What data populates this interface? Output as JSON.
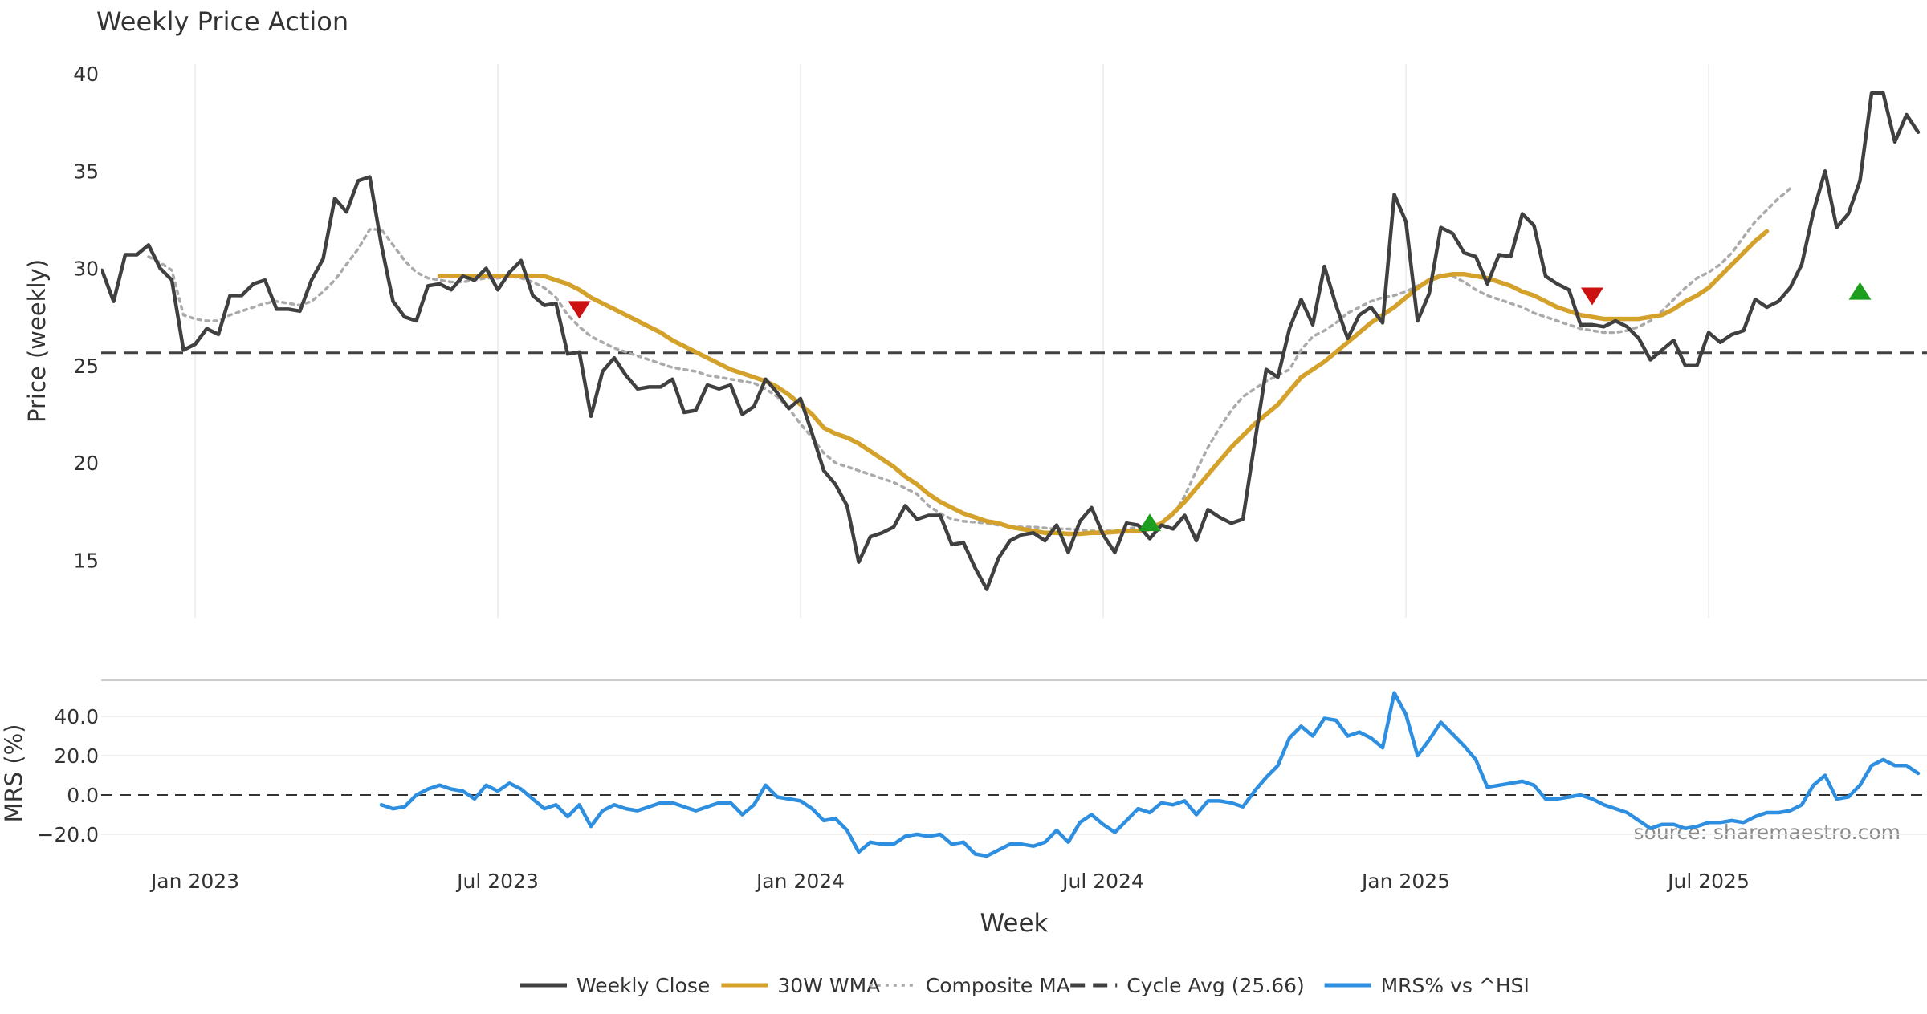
{
  "chart_data": [
    {
      "type": "line",
      "panel": "price",
      "title": "Weekly Price Action",
      "xlabel": "",
      "ylabel": "Price (weekly)",
      "ylim": [
        12,
        40.5
      ],
      "yticks": [
        15,
        20,
        25,
        30,
        35,
        40
      ],
      "grid": "vertical",
      "reference_line": {
        "name": "Cycle Avg (25.66)",
        "value": 25.66
      },
      "series": [
        {
          "name": "Weekly Close",
          "color": "#404040",
          "start_week": 0,
          "values": [
            29.9,
            28.3,
            30.7,
            30.7,
            31.2,
            30.0,
            29.4,
            25.8,
            26.1,
            26.9,
            26.6,
            28.6,
            28.6,
            29.2,
            29.4,
            27.9,
            27.9,
            27.8,
            29.4,
            30.5,
            33.6,
            32.9,
            34.5,
            34.7,
            31.2,
            28.3,
            27.5,
            27.3,
            29.1,
            29.2,
            28.9,
            29.6,
            29.4,
            30.0,
            28.9,
            29.8,
            30.4,
            28.6,
            28.1,
            28.2,
            25.6,
            25.7,
            22.4,
            24.7,
            25.4,
            24.5,
            23.8,
            23.9,
            23.9,
            24.3,
            22.6,
            22.7,
            24.0,
            23.8,
            24.0,
            22.5,
            22.9,
            24.3,
            23.6,
            22.8,
            23.3,
            21.5,
            19.6,
            18.9,
            17.8,
            14.9,
            16.2,
            16.4,
            16.7,
            17.8,
            17.1,
            17.3,
            17.3,
            15.8,
            15.9,
            14.6,
            13.5,
            15.1,
            16.0,
            16.3,
            16.4,
            16.0,
            16.8,
            15.4,
            17.0,
            17.7,
            16.3,
            15.4,
            16.9,
            16.8,
            16.1,
            16.8,
            16.6,
            17.3,
            16.0,
            17.6,
            17.2,
            16.9,
            17.1,
            21.0,
            24.8,
            24.4,
            26.9,
            28.4,
            27.1,
            30.1,
            28.1,
            26.4,
            27.6,
            28.0,
            27.2,
            33.8,
            32.4,
            27.3,
            28.7,
            32.1,
            31.8,
            30.8,
            30.6,
            29.2,
            30.7,
            30.6,
            32.8,
            32.2,
            29.6,
            29.2,
            28.9,
            27.1,
            27.1,
            27.0,
            27.3,
            27.0,
            26.4,
            25.3,
            25.8,
            26.3,
            25.0,
            25.0,
            26.7,
            26.2,
            26.6,
            26.8,
            28.4,
            28.0,
            28.3,
            29.0,
            30.2,
            32.9,
            35.0,
            32.1,
            32.8,
            34.5,
            39.0,
            39.0,
            36.5,
            37.9,
            37.0
          ]
        },
        {
          "name": "30W WMA",
          "color": "#D4A12A",
          "start_week": 29,
          "values": [
            29.6,
            29.6,
            29.6,
            29.6,
            29.6,
            29.6,
            29.6,
            29.6,
            29.6,
            29.6,
            29.4,
            29.2,
            28.9,
            28.5,
            28.2,
            27.9,
            27.6,
            27.3,
            27.0,
            26.7,
            26.3,
            26.0,
            25.7,
            25.4,
            25.1,
            24.8,
            24.6,
            24.4,
            24.2,
            23.9,
            23.5,
            23.0,
            22.5,
            21.8,
            21.5,
            21.3,
            21.0,
            20.6,
            20.2,
            19.8,
            19.3,
            18.9,
            18.4,
            18.0,
            17.7,
            17.4,
            17.2,
            17.0,
            16.9,
            16.7,
            16.6,
            16.5,
            16.4,
            16.4,
            16.35,
            16.35,
            16.4,
            16.4,
            16.45,
            16.5,
            16.5,
            16.6,
            16.9,
            17.4,
            18.0,
            18.7,
            19.4,
            20.1,
            20.8,
            21.4,
            22.0,
            22.5,
            23.0,
            23.7,
            24.4,
            24.8,
            25.2,
            25.7,
            26.2,
            26.7,
            27.2,
            27.6,
            28.0,
            28.5,
            29.0,
            29.4,
            29.6,
            29.7,
            29.7,
            29.6,
            29.5,
            29.3,
            29.1,
            28.8,
            28.6,
            28.3,
            28.0,
            27.8,
            27.6,
            27.5,
            27.4,
            27.4,
            27.4,
            27.4,
            27.5,
            27.6,
            27.9,
            28.3,
            28.6,
            29.0,
            29.6,
            30.2,
            30.8,
            31.4,
            31.9
          ]
        },
        {
          "name": "Composite MA",
          "color": "#AAAAAA",
          "start_week": 4,
          "values": [
            30.6,
            30.3,
            29.9,
            27.6,
            27.4,
            27.3,
            27.3,
            27.6,
            27.8,
            28.0,
            28.2,
            28.3,
            28.2,
            28.1,
            28.3,
            28.8,
            29.4,
            30.2,
            31.0,
            32.0,
            32.0,
            31.2,
            30.4,
            29.8,
            29.5,
            29.4,
            29.3,
            29.3,
            29.4,
            29.5,
            29.5,
            29.6,
            29.5,
            29.3,
            29.0,
            28.5,
            27.6,
            27.0,
            26.5,
            26.2,
            25.9,
            25.7,
            25.5,
            25.3,
            25.1,
            24.9,
            24.8,
            24.7,
            24.5,
            24.4,
            24.3,
            24.2,
            24.1,
            23.8,
            23.4,
            22.8,
            22.0,
            21.3,
            20.5,
            20.0,
            19.8,
            19.6,
            19.4,
            19.2,
            19.0,
            18.7,
            18.4,
            17.8,
            17.4,
            17.1,
            17.0,
            16.95,
            16.9,
            16.8,
            16.75,
            16.7,
            16.7,
            16.65,
            16.6,
            16.6,
            16.55,
            16.5,
            16.5,
            16.5,
            16.6,
            16.7,
            16.8,
            16.9,
            17.3,
            18.3,
            19.6,
            20.8,
            21.8,
            22.7,
            23.4,
            23.8,
            24.2,
            24.5,
            24.8,
            25.8,
            26.5,
            26.8,
            27.2,
            27.7,
            28.0,
            28.3,
            28.5,
            28.6,
            28.8,
            29.1,
            29.4,
            29.7,
            29.6,
            29.3,
            28.9,
            28.6,
            28.4,
            28.2,
            28.0,
            27.7,
            27.5,
            27.3,
            27.1,
            26.9,
            26.8,
            26.7,
            26.7,
            26.8,
            27.0,
            27.3,
            27.8,
            28.4,
            29.0,
            29.5,
            29.8,
            30.2,
            30.8,
            31.6,
            32.4,
            33.0,
            33.6,
            34.1
          ]
        }
      ],
      "markers": [
        {
          "type": "sell",
          "week": 41,
          "value": 27.9,
          "color": "#CC1111"
        },
        {
          "type": "buy",
          "week": 90,
          "value": 16.9,
          "color": "#1E9E1E"
        },
        {
          "type": "sell",
          "week": 128,
          "value": 28.6,
          "color": "#CC1111"
        },
        {
          "type": "buy",
          "week": 151,
          "value": 28.8,
          "color": "#1E9E1E"
        }
      ]
    },
    {
      "type": "line",
      "panel": "mrs",
      "xlabel": "Week",
      "ylabel": "MRS (%)",
      "ylim": [
        -30,
        55
      ],
      "yticks": [
        40,
        20,
        0,
        -20
      ],
      "ytick_labels": [
        "40.0",
        "20.0",
        "0.0",
        "−20.0"
      ],
      "grid": "horizontal",
      "reference_line": {
        "value": 0
      },
      "series": [
        {
          "name": "MRS% vs ^HSI",
          "color": "#2E8FE0",
          "start_week": 24,
          "values": [
            -5,
            -7,
            -6,
            0,
            3,
            5,
            3,
            2,
            -2,
            5,
            2,
            6,
            3,
            -2,
            -7,
            -5,
            -11,
            -5,
            -16,
            -8,
            -5,
            -7,
            -8,
            -6,
            -4,
            -4,
            -6,
            -8,
            -6,
            -4,
            -4,
            -10,
            -5,
            5,
            -1,
            -2,
            -3,
            -7,
            -13,
            -12,
            -18,
            -29,
            -24,
            -25,
            -25,
            -21,
            -20,
            -21,
            -20,
            -25,
            -24,
            -30,
            -31,
            -28,
            -25,
            -25,
            -26,
            -24,
            -18,
            -24,
            -14,
            -10,
            -15,
            -19,
            -13,
            -7,
            -9,
            -4,
            -5,
            -3,
            -10,
            -3,
            -3,
            -4,
            -6,
            2,
            9,
            15,
            29,
            35,
            30,
            39,
            38,
            30,
            32,
            29,
            24,
            52,
            41,
            20,
            28,
            37,
            31,
            25,
            18,
            4,
            5,
            6,
            7,
            5,
            -2,
            -2,
            -1,
            0,
            -2,
            -5,
            -7,
            -9,
            -13,
            -17,
            -15,
            -15,
            -17,
            -16,
            -14,
            -14,
            -13,
            -14,
            -11,
            -9,
            -9,
            -8,
            -5,
            5,
            10,
            -2,
            -1,
            5,
            15,
            18,
            15,
            15,
            11
          ]
        }
      ],
      "x_ticks": [
        {
          "label": "Jan 2023",
          "week": 8
        },
        {
          "label": "Jul 2023",
          "week": 34
        },
        {
          "label": "Jan 2024",
          "week": 60
        },
        {
          "label": "Jul 2024",
          "week": 86
        },
        {
          "label": "Jan 2025",
          "week": 112
        },
        {
          "label": "Jul 2025",
          "week": 138
        }
      ],
      "source_note": "source: sharemaestro.com"
    }
  ],
  "legend": {
    "placement": "bottom-center",
    "entries": [
      {
        "label": "Weekly Close",
        "style": "solid",
        "color": "#404040"
      },
      {
        "label": "30W WMA",
        "style": "solid",
        "color": "#D4A12A"
      },
      {
        "label": "Composite MA",
        "style": "dotted",
        "color": "#AAAAAA"
      },
      {
        "label": "Cycle Avg (25.66)",
        "style": "dashed",
        "color": "#404040"
      },
      {
        "label": "MRS% vs ^HSI",
        "style": "solid",
        "color": "#2E8FE0"
      }
    ]
  }
}
